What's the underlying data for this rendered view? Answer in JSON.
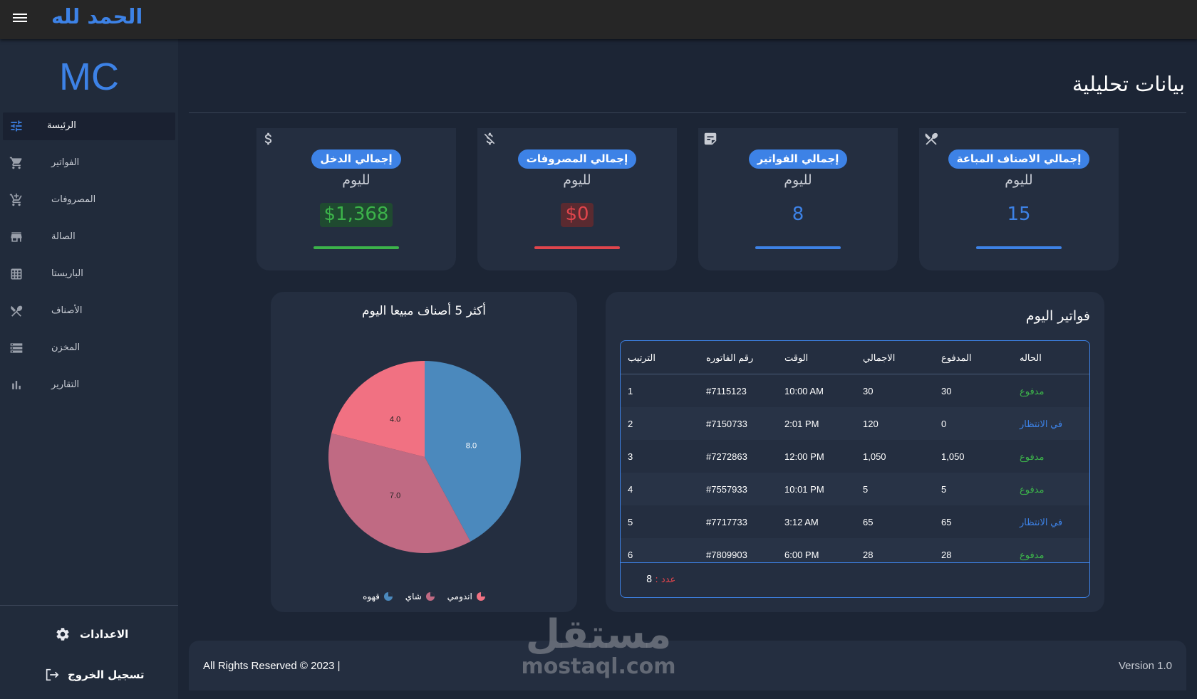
{
  "header": {
    "brand": "الحمد لله"
  },
  "sidebar": {
    "logo": "MC",
    "items": [
      {
        "label": "الرئيسة",
        "icon": "sliders-icon"
      },
      {
        "label": "الفواتير",
        "icon": "cart-icon"
      },
      {
        "label": "المصروفات",
        "icon": "cart-plus-icon"
      },
      {
        "label": "الصالة",
        "icon": "storefront-icon"
      },
      {
        "label": "الباريستا",
        "icon": "grid-icon"
      },
      {
        "label": "الأصناف",
        "icon": "utensils-icon"
      },
      {
        "label": "المخزن",
        "icon": "storage-icon"
      },
      {
        "label": "التقارير",
        "icon": "bar-chart-icon"
      }
    ],
    "active_index": 0,
    "settings_label": "الاعدادات",
    "logout_label": "تسجيل الخروج"
  },
  "page": {
    "title": "بيانات تحليلية"
  },
  "stats": [
    {
      "title": "إجمالي الدخل",
      "subtitle": "لليوم",
      "value": "$1,368",
      "icon": "dollar-icon",
      "color": "#3cb34a"
    },
    {
      "title": "إجمالي المصروفات",
      "subtitle": "لليوم",
      "value": "$0",
      "icon": "money-off-icon",
      "color": "#e0454c"
    },
    {
      "title": "إجمالي الفواتير",
      "subtitle": "لليوم",
      "value": "8",
      "icon": "receipt-icon",
      "color": "#3d82e6"
    },
    {
      "title": "إجمالي الاصناف المباعة",
      "subtitle": "لليوم",
      "value": "15",
      "icon": "utensils-icon",
      "color": "#3d82e6"
    }
  ],
  "chart_data": {
    "type": "pie",
    "title": "أكثر 5 أصناف مبيعا اليوم",
    "categories": [
      "قهوه",
      "شاي",
      "اندومي"
    ],
    "values": [
      8.0,
      7.0,
      4.0
    ],
    "value_labels": [
      "8.0",
      "7.0",
      "4.0"
    ],
    "colors": [
      "#4b89bd",
      "#c06a83",
      "#f17182"
    ],
    "legend": "bottom"
  },
  "invoices": {
    "title": "فواتير اليوم",
    "columns": [
      "الترتيب",
      "رقم الفاتوره",
      "الوقت",
      "الاجمالي",
      "المدفوع",
      "الحاله"
    ],
    "rows": [
      {
        "rank": "1",
        "number": "#7115123",
        "time": "10:00 AM",
        "total": "30",
        "paid": "30",
        "status": "مدفوع",
        "status_type": "paid"
      },
      {
        "rank": "2",
        "number": "#7150733",
        "time": "2:01 PM",
        "total": "120",
        "paid": "0",
        "status": "في الانتظار",
        "status_type": "pending"
      },
      {
        "rank": "3",
        "number": "#7272863",
        "time": "12:00 PM",
        "total": "1,050",
        "paid": "1,050",
        "status": "مدفوع",
        "status_type": "paid"
      },
      {
        "rank": "4",
        "number": "#7557933",
        "time": "10:01 PM",
        "total": "5",
        "paid": "5",
        "status": "مدفوع",
        "status_type": "paid"
      },
      {
        "rank": "5",
        "number": "#7717733",
        "time": "3:12 AM",
        "total": "65",
        "paid": "65",
        "status": "في الانتظار",
        "status_type": "pending"
      },
      {
        "rank": "6",
        "number": "#7809903",
        "time": "6:00 PM",
        "total": "28",
        "paid": "28",
        "status": "مدفوع",
        "status_type": "paid"
      }
    ],
    "count_label": "عدد :",
    "count_value": "8"
  },
  "footer": {
    "copyright": "All Rights Reserved © 2023 |",
    "version": "Version 1.0"
  },
  "watermark": {
    "arabic": "مستقل",
    "latin": "mostaql.com"
  }
}
